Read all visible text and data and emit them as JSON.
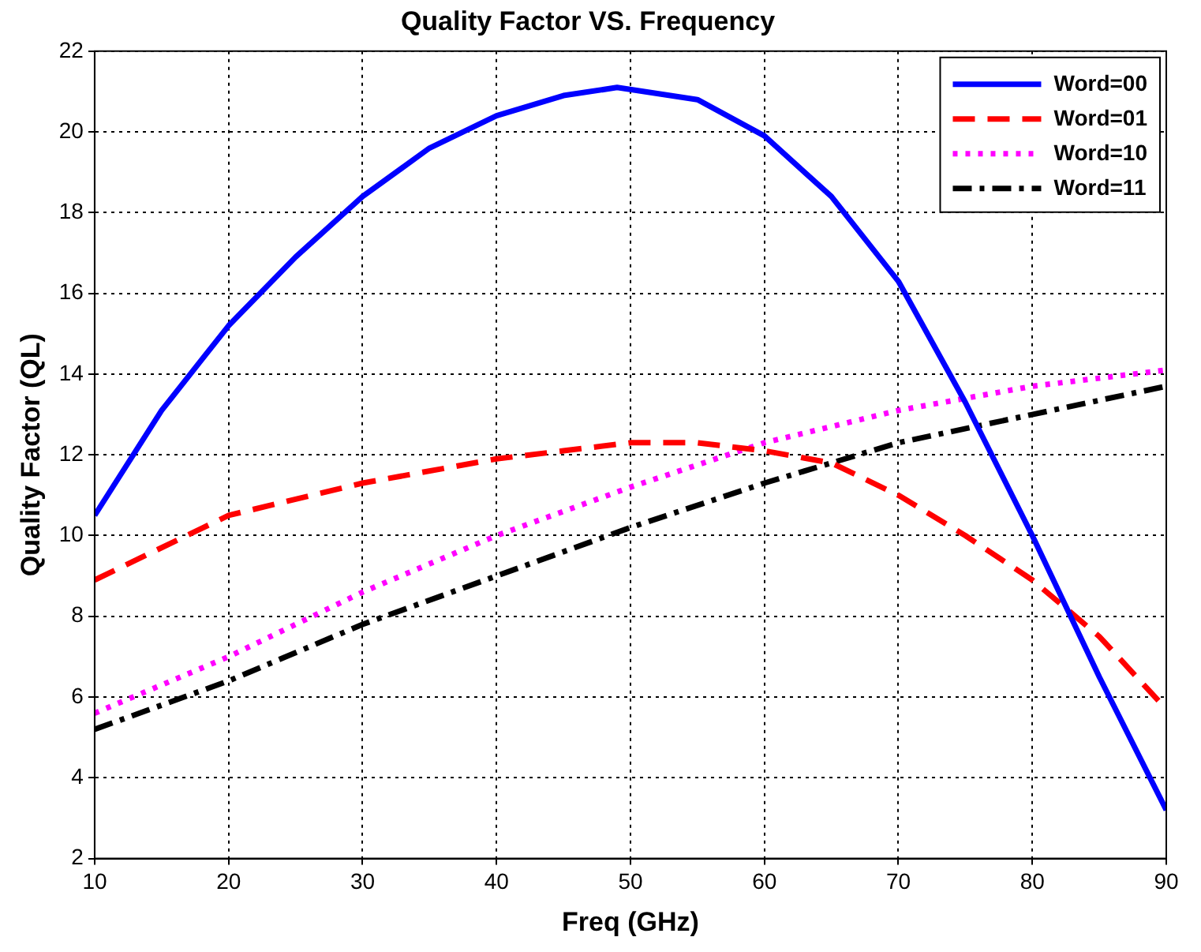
{
  "chart_data": {
    "type": "line",
    "title": "Quality Factor VS. Frequency",
    "xlabel": "Freq (GHz)",
    "ylabel": "Quality Factor (QL)",
    "xlim": [
      10,
      90
    ],
    "xticks": [
      10,
      20,
      30,
      40,
      50,
      60,
      70,
      80,
      90
    ],
    "ylim": [
      2,
      22
    ],
    "yticks": [
      2,
      4,
      6,
      8,
      10,
      12,
      14,
      16,
      18,
      20,
      22
    ],
    "grid": true,
    "legend": "top right",
    "marker": "none",
    "series": [
      {
        "name": "Word=00",
        "color": "#0000ff",
        "line_style": "solid",
        "x": [
          10,
          15,
          20,
          25,
          30,
          35,
          40,
          45,
          49,
          55,
          60,
          65,
          70,
          75,
          80,
          85,
          90
        ],
        "values": [
          10.5,
          13.1,
          15.2,
          16.9,
          18.4,
          19.6,
          20.4,
          20.9,
          21.1,
          20.8,
          19.9,
          18.4,
          16.3,
          13.3,
          10.0,
          6.5,
          3.2
        ]
      },
      {
        "name": "Word=01",
        "color": "#ff0000",
        "line_style": "dashed",
        "x": [
          10,
          20,
          30,
          40,
          45,
          50,
          55,
          60,
          65,
          70,
          75,
          80,
          85,
          90
        ],
        "values": [
          8.9,
          10.5,
          11.3,
          11.9,
          12.1,
          12.3,
          12.3,
          12.1,
          11.8,
          11.0,
          10.0,
          8.9,
          7.5,
          5.7
        ]
      },
      {
        "name": "Word=10",
        "color": "#ff00ff",
        "line_style": "dotted",
        "x": [
          10,
          20,
          30,
          40,
          50,
          60,
          70,
          80,
          90
        ],
        "values": [
          5.6,
          7.0,
          8.6,
          10.0,
          11.2,
          12.3,
          13.1,
          13.7,
          14.1
        ]
      },
      {
        "name": "Word=11",
        "color": "#000000",
        "line_style": "dashdot",
        "x": [
          10,
          20,
          30,
          40,
          50,
          60,
          70,
          80,
          90
        ],
        "values": [
          5.2,
          6.4,
          7.8,
          9.0,
          10.2,
          11.3,
          12.3,
          13.0,
          13.7
        ]
      }
    ]
  }
}
